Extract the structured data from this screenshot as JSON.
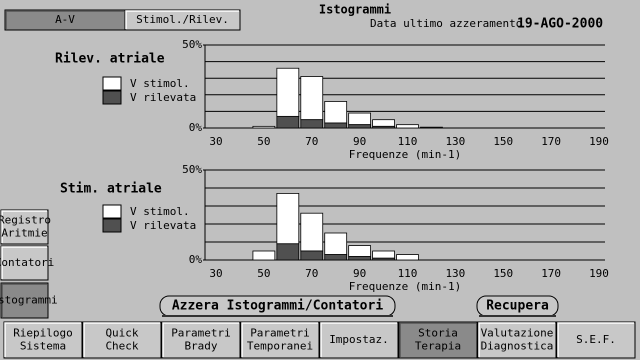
{
  "ui": {
    "title": "Istogrammi",
    "reset_label": "Data ultimo azzeramento",
    "reset_date": "19-AGO-2000",
    "top_tabs": [
      "A-V",
      "Stimol./Rilev."
    ],
    "side_buttons": [
      [
        "Registro",
        "Aritmie"
      ],
      [
        "Contatori"
      ],
      [
        "Istogrammi"
      ]
    ],
    "actions": [
      "Azzera Istogrammi/Contatori",
      "Recupera"
    ],
    "bottom_tabs": [
      [
        "Riepilogo",
        "Sistema"
      ],
      [
        "Quick",
        "Check"
      ],
      [
        "Parametri",
        "Brady"
      ],
      [
        "Parametri",
        "Temporanei"
      ],
      [
        "Impostaz."
      ],
      [
        "Storia",
        "Terapia"
      ],
      [
        "Valutazione",
        "Diagnostica"
      ],
      [
        "S.E.F."
      ]
    ]
  },
  "chart_data": [
    {
      "type": "histogram",
      "title": "Rilev. atriale",
      "x_label": "Frequenze (min-1)",
      "bins": [
        45,
        55,
        65,
        75,
        85,
        95,
        105,
        115,
        125
      ],
      "series": [
        {
          "name": "V stimol.",
          "color": "#ffffff",
          "values": [
            1,
            29,
            26,
            13,
            7,
            4,
            2,
            0.5
          ]
        },
        {
          "name": "V rilevata",
          "color": "#505050",
          "values": [
            0,
            7,
            5,
            3,
            2,
            1,
            0,
            0
          ]
        }
      ],
      "xlim": [
        25.4,
        192.5
      ],
      "xticks": [
        30,
        50,
        70,
        90,
        110,
        130,
        150,
        170,
        190
      ],
      "ylim": [
        0,
        50
      ],
      "yticks": [
        {
          "value": 0,
          "label": "0%"
        },
        {
          "value": 50,
          "label": "50%"
        }
      ],
      "ygrid": [
        0,
        10,
        20,
        30,
        40,
        50
      ]
    },
    {
      "type": "histogram",
      "title": "Stim. atriale",
      "x_label": "Frequenze (min-1)",
      "bins": [
        45,
        55,
        65,
        75,
        85,
        95,
        105,
        115
      ],
      "series": [
        {
          "name": "V stimol.",
          "color": "#ffffff",
          "values": [
            5,
            28,
            21,
            12,
            6,
            4,
            3
          ]
        },
        {
          "name": "V rilevata",
          "color": "#505050",
          "values": [
            0,
            9,
            5,
            3,
            2,
            1,
            0
          ]
        }
      ],
      "xlim": [
        25.4,
        192.5
      ],
      "xticks": [
        30,
        50,
        70,
        90,
        110,
        130,
        150,
        170,
        190
      ],
      "ylim": [
        0,
        50
      ],
      "yticks": [
        {
          "value": 0,
          "label": "0%"
        },
        {
          "value": 50,
          "label": "50%"
        }
      ],
      "ygrid": [
        0,
        10,
        20,
        30,
        40,
        50
      ]
    }
  ]
}
